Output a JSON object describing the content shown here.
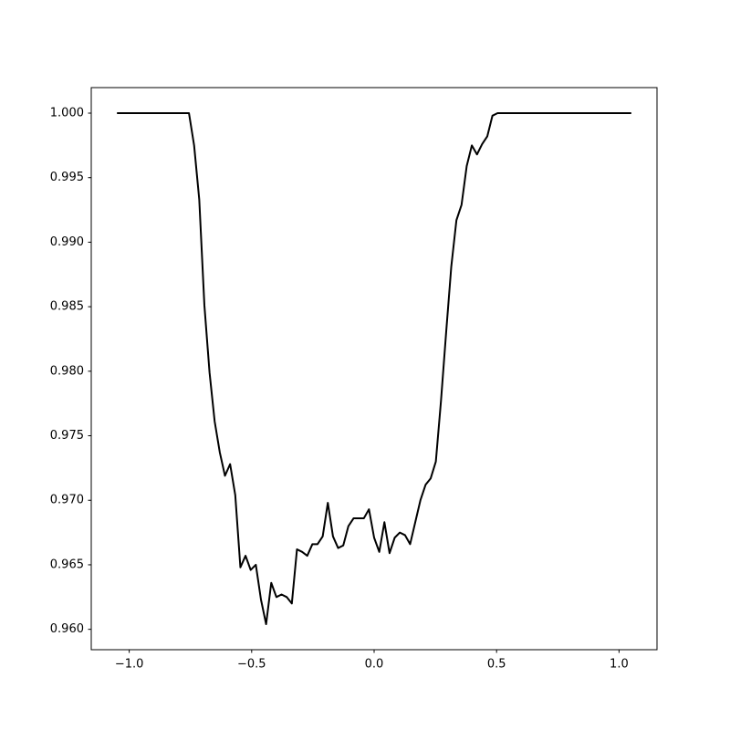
{
  "chart_data": {
    "type": "line",
    "x": [
      -1.05,
      -1.029,
      -1.008,
      -0.987,
      -0.966,
      -0.945,
      -0.924,
      -0.903,
      -0.882,
      -0.861,
      -0.84,
      -0.819,
      -0.798,
      -0.777,
      -0.756,
      -0.735,
      -0.714,
      -0.693,
      -0.672,
      -0.651,
      -0.63,
      -0.609,
      -0.588,
      -0.567,
      -0.546,
      -0.525,
      -0.504,
      -0.483,
      -0.462,
      -0.441,
      -0.42,
      -0.399,
      -0.378,
      -0.357,
      -0.336,
      -0.315,
      -0.294,
      -0.273,
      -0.252,
      -0.231,
      -0.21,
      -0.189,
      -0.168,
      -0.147,
      -0.126,
      -0.105,
      -0.084,
      -0.063,
      -0.042,
      -0.021,
      0,
      0.021,
      0.042,
      0.063,
      0.084,
      0.105,
      0.126,
      0.147,
      0.168,
      0.189,
      0.21,
      0.231,
      0.252,
      0.273,
      0.294,
      0.315,
      0.336,
      0.357,
      0.378,
      0.399,
      0.42,
      0.441,
      0.462,
      0.483,
      0.504,
      0.525,
      0.546,
      0.567,
      0.588,
      0.609,
      0.63,
      0.651,
      0.672,
      0.693,
      0.714,
      0.735,
      0.756,
      0.777,
      0.798,
      0.819,
      0.84,
      0.861,
      0.882,
      0.903,
      0.924,
      0.945,
      0.966,
      0.987,
      1.008,
      1.029,
      1.05
    ],
    "series": [
      {
        "color": "#000000",
        "values": [
          1,
          1,
          1,
          1,
          1,
          1,
          1,
          1,
          1,
          1,
          1,
          1,
          1,
          1,
          1,
          0.9975,
          0.9933,
          0.9851,
          0.9799,
          0.9761,
          0.9737,
          0.9719,
          0.9728,
          0.9704,
          0.9648,
          0.9657,
          0.9646,
          0.965,
          0.9623,
          0.9604,
          0.9636,
          0.9625,
          0.9627,
          0.9625,
          0.962,
          0.9662,
          0.966,
          0.9657,
          0.9666,
          0.9666,
          0.9672,
          0.9698,
          0.9672,
          0.9663,
          0.9665,
          0.968,
          0.9686,
          0.9686,
          0.9686,
          0.9693,
          0.9671,
          0.966,
          0.9683,
          0.9659,
          0.9671,
          0.9675,
          0.9673,
          0.9666,
          0.9683,
          0.97,
          0.9712,
          0.9717,
          0.973,
          0.9777,
          0.983,
          0.9881,
          0.9917,
          0.9929,
          0.9959,
          0.9975,
          0.9968,
          0.9976,
          0.9982,
          0.9998,
          1,
          1,
          1,
          1,
          1,
          1,
          1,
          1,
          1,
          1,
          1,
          1,
          1,
          1,
          1,
          1,
          1,
          1,
          1,
          1,
          1,
          1,
          1,
          1,
          1,
          1,
          1
        ]
      }
    ],
    "xlim": [
      -1.155,
      1.155
    ],
    "ylim": [
      0.95842,
      1.00198
    ],
    "xticks": [
      {
        "value": -1,
        "label": "−1.0"
      },
      {
        "value": -0.5,
        "label": "−0.5"
      },
      {
        "value": 0,
        "label": "0.0"
      },
      0.5,
      {
        "value": 1,
        "label": "1.0"
      }
    ],
    "yticks": [
      {
        "value": 0.96,
        "label": "0.960"
      },
      {
        "value": 0.965,
        "label": "0.965"
      },
      {
        "value": 0.97,
        "label": "0.970"
      },
      {
        "value": 0.975,
        "label": "0.975"
      },
      {
        "value": 0.98,
        "label": "0.980"
      },
      {
        "value": 0.985,
        "label": "0.985"
      },
      {
        "value": 0.99,
        "label": "0.990"
      },
      {
        "value": 0.995,
        "label": "0.995"
      },
      {
        "value": 1,
        "label": "1.000"
      }
    ]
  }
}
